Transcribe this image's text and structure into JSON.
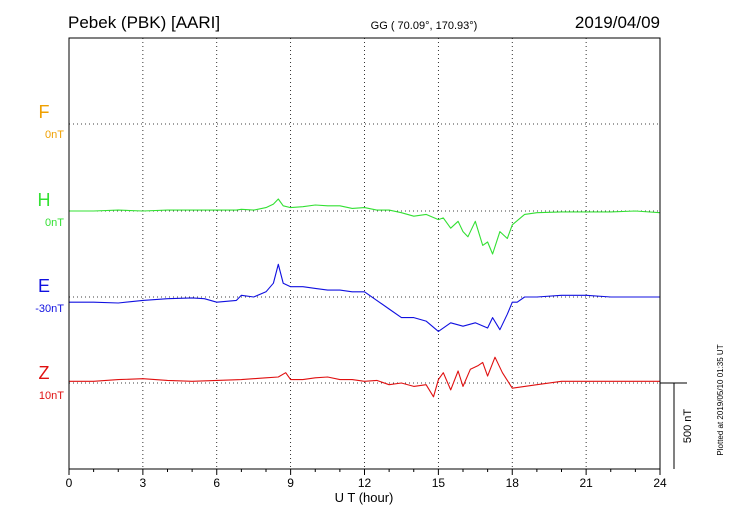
{
  "header": {
    "station": "Pebek (PBK)  [AARI]",
    "coords": "GG ( 70.09°, 170.93°)",
    "date": "2019/04/09"
  },
  "footer_note": "Plotted at 2019/05/10 01:35 UT",
  "chart_data": {
    "type": "line",
    "xlabel": "U T (hour)",
    "xlim": [
      0,
      24
    ],
    "xticks": [
      0,
      3,
      6,
      9,
      12,
      15,
      18,
      21,
      24
    ],
    "xtick_labels": [
      "0",
      "3",
      "6",
      "9",
      "12",
      "15",
      "18",
      "21",
      "24"
    ],
    "scale_bar": {
      "label": "500 nT",
      "value_nT": 500
    },
    "grid": true,
    "series": [
      {
        "name": "F",
        "offset_label": "0nT",
        "color": "#f0a000",
        "x": [],
        "y": []
      },
      {
        "name": "H",
        "offset_label": "0nT",
        "color": "#33e033",
        "x": [
          0,
          1,
          2,
          3,
          4,
          5,
          6,
          6.8,
          7,
          7.5,
          8,
          8.3,
          8.5,
          8.7,
          9,
          9.5,
          10,
          10.5,
          11,
          11.5,
          12,
          12.5,
          13,
          13.5,
          14,
          14.5,
          15,
          15.2,
          15.5,
          15.8,
          16,
          16.2,
          16.5,
          16.8,
          17,
          17.2,
          17.5,
          17.8,
          18,
          18.5,
          19,
          20,
          21,
          22,
          23,
          24
        ],
        "y": [
          0,
          0,
          5,
          0,
          5,
          5,
          5,
          5,
          10,
          5,
          20,
          40,
          70,
          30,
          20,
          25,
          35,
          30,
          30,
          15,
          20,
          5,
          5,
          -10,
          -30,
          -20,
          -50,
          -40,
          -100,
          -60,
          -120,
          -150,
          -60,
          -200,
          -180,
          -250,
          -120,
          -160,
          -80,
          -20,
          -10,
          -5,
          -5,
          -5,
          0,
          -10
        ]
      },
      {
        "name": "E",
        "offset_label": "-30nT",
        "color": "#1010e0",
        "x": [
          0,
          1,
          2,
          3,
          4,
          5,
          5.5,
          6,
          6.8,
          7,
          7.5,
          8,
          8.3,
          8.5,
          8.7,
          9,
          9.5,
          10,
          10.5,
          11,
          11.5,
          12,
          12.5,
          13,
          13.5,
          14,
          14.5,
          15,
          15.5,
          16,
          16.5,
          17,
          17.2,
          17.5,
          17.8,
          18,
          18.2,
          18.5,
          19,
          20,
          21,
          22,
          23,
          24
        ],
        "y": [
          -30,
          -30,
          -35,
          -20,
          -10,
          -5,
          -10,
          -30,
          -20,
          10,
          0,
          30,
          80,
          190,
          80,
          60,
          60,
          50,
          40,
          40,
          30,
          30,
          -20,
          -70,
          -120,
          -120,
          -140,
          -200,
          -150,
          -170,
          -150,
          -180,
          -120,
          -190,
          -100,
          -30,
          -30,
          0,
          0,
          10,
          10,
          0,
          0,
          0
        ]
      },
      {
        "name": "Z",
        "offset_label": "10nT",
        "color": "#e01010",
        "x": [
          0,
          1,
          2,
          3,
          4,
          5,
          6,
          7,
          8,
          8.5,
          8.8,
          9,
          9.5,
          10,
          10.5,
          11,
          11.5,
          12,
          12.5,
          13,
          13.5,
          14,
          14.5,
          14.8,
          15,
          15.2,
          15.5,
          15.8,
          16,
          16.3,
          16.6,
          16.8,
          17,
          17.3,
          17.6,
          18,
          18.5,
          19,
          20,
          21,
          22,
          23,
          24
        ],
        "y": [
          10,
          10,
          20,
          25,
          15,
          10,
          15,
          20,
          30,
          35,
          60,
          20,
          20,
          30,
          35,
          20,
          20,
          10,
          15,
          -10,
          0,
          -20,
          -10,
          -80,
          20,
          60,
          -40,
          70,
          -20,
          80,
          100,
          120,
          40,
          150,
          60,
          -30,
          -20,
          -10,
          10,
          10,
          10,
          10,
          10
        ]
      }
    ]
  }
}
